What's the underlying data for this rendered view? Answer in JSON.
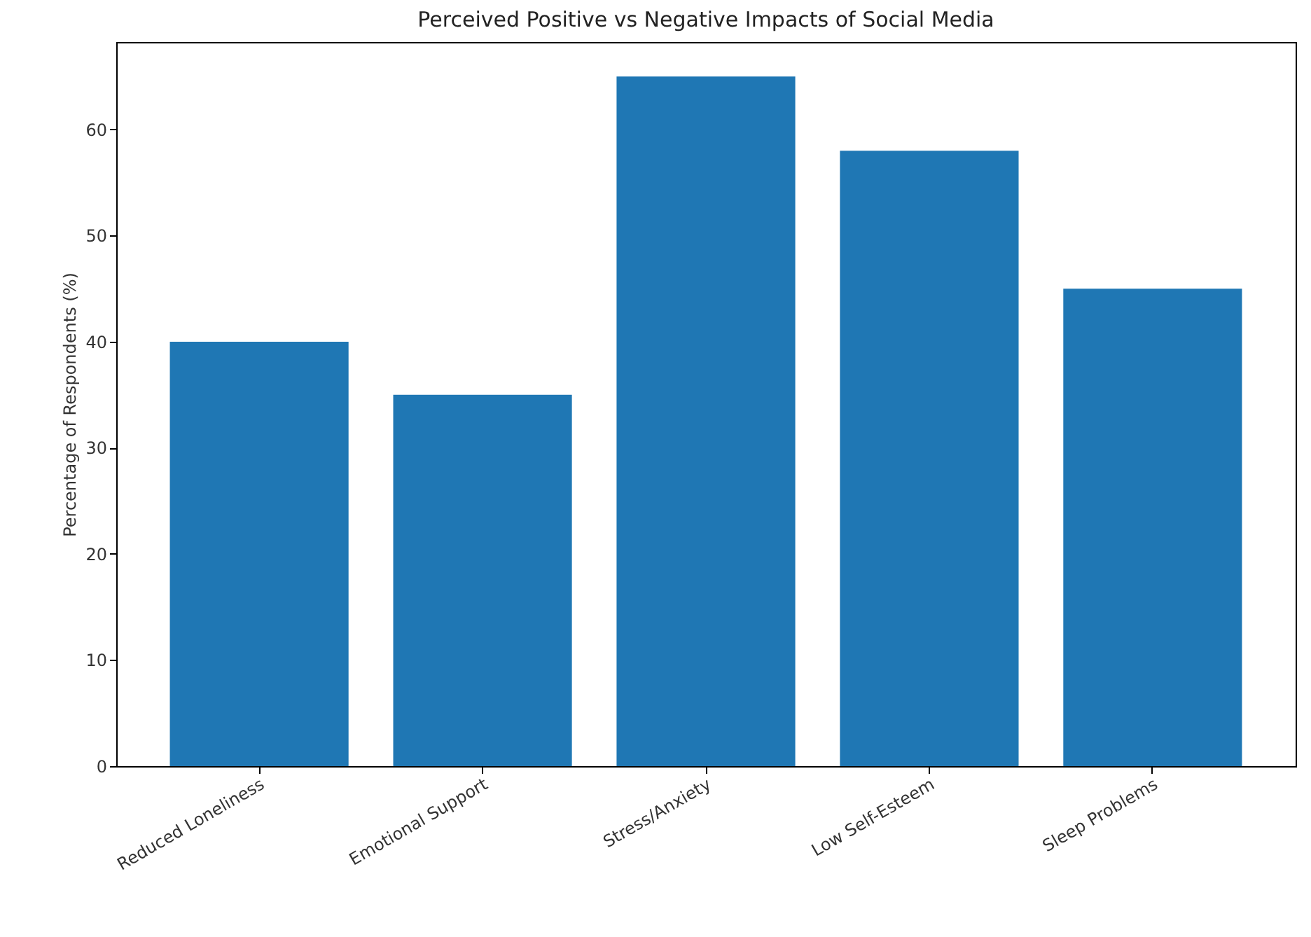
{
  "chart_data": {
    "type": "bar",
    "title": "Perceived Positive vs Negative Impacts of Social Media",
    "ylabel": "Percentage of Respondents (%)",
    "categories": [
      "Reduced Loneliness",
      "Emotional Support",
      "Stress/Anxiety",
      "Low Self-Esteem",
      "Sleep Problems"
    ],
    "values": [
      40,
      35,
      65,
      58,
      45
    ],
    "color": "#1f77b4",
    "ylim": [
      0,
      68.25
    ],
    "yticks": [
      0,
      10,
      20,
      30,
      40,
      50,
      60
    ],
    "grid": false
  }
}
